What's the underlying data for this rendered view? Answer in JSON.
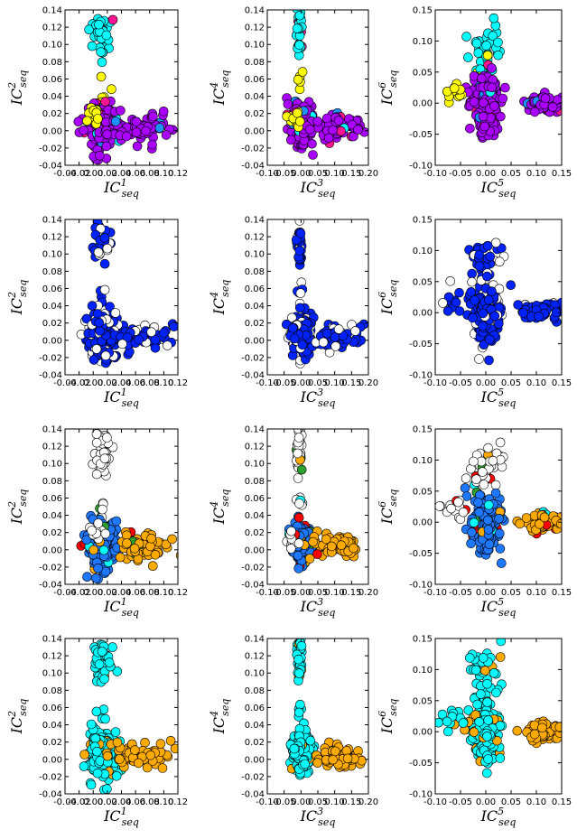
{
  "figure": {
    "rows": 4,
    "cols": 3,
    "background": "#ffffff",
    "point_edge_color": "#000000"
  },
  "chart_data": [
    {
      "type": "scatter",
      "row": 1,
      "col": 1,
      "x_ic": "1",
      "y_ic": "2",
      "xlabel": "IC^1_seq",
      "ylabel": "IC^2_seq",
      "coloring": "clusters",
      "xlim": [
        -0.04,
        0.12
      ],
      "ylim": [
        -0.04,
        0.14
      ],
      "xticks": [
        "-0.04",
        "-0.02",
        "0.00",
        "0.02",
        "0.04",
        "0.06",
        "0.08",
        "0.10",
        "0.12"
      ],
      "yticks": [
        "-0.04",
        "-0.02",
        "0.00",
        "0.02",
        "0.04",
        "0.06",
        "0.08",
        "0.10",
        "0.12",
        "0.14"
      ]
    },
    {
      "type": "scatter",
      "row": 1,
      "col": 2,
      "x_ic": "3",
      "y_ic": "4",
      "xlabel": "IC^3_seq",
      "ylabel": "IC^4_seq",
      "coloring": "clusters",
      "xlim": [
        -0.1,
        0.2
      ],
      "ylim": [
        -0.04,
        0.14
      ],
      "xticks": [
        "-0.10",
        "-0.05",
        "0.00",
        "0.05",
        "0.10",
        "0.15",
        "0.20"
      ],
      "yticks": [
        "-0.04",
        "-0.02",
        "0.00",
        "0.02",
        "0.04",
        "0.06",
        "0.08",
        "0.10",
        "0.12",
        "0.14"
      ]
    },
    {
      "type": "scatter",
      "row": 1,
      "col": 3,
      "x_ic": "5",
      "y_ic": "6",
      "xlabel": "IC^5_seq",
      "ylabel": "IC^6_seq",
      "coloring": "clusters",
      "xlim": [
        -0.1,
        0.15
      ],
      "ylim": [
        -0.1,
        0.15
      ],
      "xticks": [
        "-0.10",
        "-0.05",
        "0.00",
        "0.05",
        "0.10",
        "0.15"
      ],
      "yticks": [
        "-0.10",
        "-0.05",
        "0.00",
        "0.05",
        "0.10",
        "0.15"
      ]
    },
    {
      "type": "scatter",
      "row": 2,
      "col": 1,
      "x_ic": "1",
      "y_ic": "2",
      "xlabel": "IC^1_seq",
      "ylabel": "IC^2_seq",
      "coloring": "blue",
      "xlim": [
        -0.04,
        0.12
      ],
      "ylim": [
        -0.04,
        0.14
      ],
      "xticks": [
        "-0.04",
        "-0.02",
        "0.00",
        "0.02",
        "0.04",
        "0.06",
        "0.08",
        "0.10",
        "0.12"
      ],
      "yticks": [
        "-0.04",
        "-0.02",
        "0.00",
        "0.02",
        "0.04",
        "0.06",
        "0.08",
        "0.10",
        "0.12",
        "0.14"
      ]
    },
    {
      "type": "scatter",
      "row": 2,
      "col": 2,
      "x_ic": "3",
      "y_ic": "4",
      "xlabel": "IC^3_seq",
      "ylabel": "IC^4_seq",
      "coloring": "blue",
      "xlim": [
        -0.1,
        0.2
      ],
      "ylim": [
        -0.04,
        0.14
      ],
      "xticks": [
        "-0.10",
        "-0.05",
        "0.00",
        "0.05",
        "0.10",
        "0.15",
        "0.20"
      ],
      "yticks": [
        "-0.04",
        "-0.02",
        "0.00",
        "0.02",
        "0.04",
        "0.06",
        "0.08",
        "0.10",
        "0.12",
        "0.14"
      ]
    },
    {
      "type": "scatter",
      "row": 2,
      "col": 3,
      "x_ic": "5",
      "y_ic": "6",
      "xlabel": "IC^5_seq",
      "ylabel": "IC^6_seq",
      "coloring": "blue",
      "xlim": [
        -0.1,
        0.15
      ],
      "ylim": [
        -0.1,
        0.15
      ],
      "xticks": [
        "-0.10",
        "-0.05",
        "0.00",
        "0.05",
        "0.10",
        "0.15"
      ],
      "yticks": [
        "-0.10",
        "-0.05",
        "0.00",
        "0.05",
        "0.10",
        "0.15"
      ]
    },
    {
      "type": "scatter",
      "row": 3,
      "col": 1,
      "x_ic": "1",
      "y_ic": "2",
      "xlabel": "IC^1_seq",
      "ylabel": "IC^2_seq",
      "coloring": "mixed",
      "xlim": [
        -0.04,
        0.12
      ],
      "ylim": [
        -0.04,
        0.14
      ],
      "xticks": [
        "-0.04",
        "-0.02",
        "0.00",
        "0.02",
        "0.04",
        "0.06",
        "0.08",
        "0.10",
        "0.12"
      ],
      "yticks": [
        "-0.04",
        "-0.02",
        "0.00",
        "0.02",
        "0.04",
        "0.06",
        "0.08",
        "0.10",
        "0.12",
        "0.14"
      ]
    },
    {
      "type": "scatter",
      "row": 3,
      "col": 2,
      "x_ic": "3",
      "y_ic": "4",
      "xlabel": "IC^3_seq",
      "ylabel": "IC^4_seq",
      "coloring": "mixed",
      "xlim": [
        -0.1,
        0.2
      ],
      "ylim": [
        -0.04,
        0.14
      ],
      "xticks": [
        "-0.10",
        "-0.05",
        "0.00",
        "0.05",
        "0.10",
        "0.15",
        "0.20"
      ],
      "yticks": [
        "-0.04",
        "-0.02",
        "0.00",
        "0.02",
        "0.04",
        "0.06",
        "0.08",
        "0.10",
        "0.12",
        "0.14"
      ]
    },
    {
      "type": "scatter",
      "row": 3,
      "col": 3,
      "x_ic": "5",
      "y_ic": "6",
      "xlabel": "IC^5_seq",
      "ylabel": "IC^6_seq",
      "coloring": "mixed",
      "xlim": [
        -0.1,
        0.15
      ],
      "ylim": [
        -0.1,
        0.15
      ],
      "xticks": [
        "-0.10",
        "-0.05",
        "0.00",
        "0.05",
        "0.10",
        "0.15"
      ],
      "yticks": [
        "-0.10",
        "-0.05",
        "0.00",
        "0.05",
        "0.10",
        "0.15"
      ]
    },
    {
      "type": "scatter",
      "row": 4,
      "col": 1,
      "x_ic": "1",
      "y_ic": "2",
      "xlabel": "IC^1_seq",
      "ylabel": "IC^2_seq",
      "coloring": "two",
      "xlim": [
        -0.04,
        0.12
      ],
      "ylim": [
        -0.04,
        0.14
      ],
      "xticks": [
        "-0.04",
        "-0.02",
        "0.00",
        "0.02",
        "0.04",
        "0.06",
        "0.08",
        "0.10",
        "0.12"
      ],
      "yticks": [
        "-0.04",
        "-0.02",
        "0.00",
        "0.02",
        "0.04",
        "0.06",
        "0.08",
        "0.10",
        "0.12",
        "0.14"
      ]
    },
    {
      "type": "scatter",
      "row": 4,
      "col": 2,
      "x_ic": "3",
      "y_ic": "4",
      "xlabel": "IC^3_seq",
      "ylabel": "IC^4_seq",
      "coloring": "two",
      "xlim": [
        -0.1,
        0.2
      ],
      "ylim": [
        -0.04,
        0.14
      ],
      "xticks": [
        "-0.10",
        "-0.05",
        "0.00",
        "0.05",
        "0.10",
        "0.15",
        "0.20"
      ],
      "yticks": [
        "-0.04",
        "-0.02",
        "0.00",
        "0.02",
        "0.04",
        "0.06",
        "0.08",
        "0.10",
        "0.12",
        "0.14"
      ]
    },
    {
      "type": "scatter",
      "row": 4,
      "col": 3,
      "x_ic": "5",
      "y_ic": "6",
      "xlabel": "IC^5_seq",
      "ylabel": "IC^6_seq",
      "coloring": "two",
      "xlim": [
        -0.1,
        0.15
      ],
      "ylim": [
        -0.1,
        0.15
      ],
      "xticks": [
        "-0.10",
        "-0.05",
        "0.00",
        "0.05",
        "0.10",
        "0.15"
      ],
      "yticks": [
        "-0.10",
        "-0.05",
        "0.00",
        "0.05",
        "0.10",
        "0.15"
      ]
    }
  ],
  "point_groups": {
    "hi_cluster": {
      "ic1": [
        0.013,
        0.007
      ],
      "ic2": [
        0.113,
        0.014
      ],
      "ic3": [
        -0.005,
        0.004
      ],
      "ic4": [
        0.113,
        0.014
      ],
      "ic5": [
        0.0,
        0.015
      ],
      "ic6": [
        0.09,
        0.02
      ]
    },
    "mid_cluster": {
      "ic1": [
        0.012,
        0.005
      ],
      "ic2": [
        0.045,
        0.012
      ],
      "ic3": [
        -0.003,
        0.004
      ],
      "ic4": [
        0.055,
        0.006
      ],
      "ic5": [
        -0.005,
        0.01
      ],
      "ic6": [
        0.055,
        0.02
      ]
    },
    "core_cluster": {
      "ic1": [
        0.012,
        0.01
      ],
      "ic2": [
        0.005,
        0.013
      ],
      "ic3": [
        0.002,
        0.014
      ],
      "ic4": [
        0.008,
        0.012
      ],
      "ic5": [
        0.0,
        0.013
      ],
      "ic6": [
        0.0,
        0.022
      ]
    },
    "tail_cluster": {
      "ic1": [
        0.07,
        0.022
      ],
      "ic2": [
        0.004,
        0.008
      ],
      "ic3": [
        0.11,
        0.035
      ],
      "ic4": [
        0.004,
        0.007
      ],
      "ic5": [
        0.115,
        0.02
      ],
      "ic6": [
        0.0,
        0.007
      ]
    },
    "left_cluster": {
      "ic1": [
        0.005,
        0.006
      ],
      "ic2": [
        0.02,
        0.006
      ],
      "ic3": [
        -0.02,
        0.01
      ],
      "ic4": [
        0.012,
        0.006
      ],
      "ic5": [
        -0.065,
        0.012
      ],
      "ic6": [
        0.018,
        0.01
      ]
    },
    "coloring": {
      "clusters": {
        "hi_cluster": "#00ffff",
        "mid_cluster": "#ffff00",
        "core_cluster": "#aa00ff",
        "tail_cluster": "#aa00ff",
        "left_cluster": "#ffff00",
        "accents": [
          "#ff1493",
          "#1e90ff",
          "#00ffff"
        ]
      },
      "blue": {
        "all": "#0022ff",
        "open": "#ffffff",
        "accents": [
          "#00ffff"
        ]
      },
      "mixed": {
        "hi_cluster": "#ffffff",
        "mid_cluster": "#ffffff",
        "core_cluster": "#1e78ff",
        "tail_cluster": "#ffaa00",
        "left_cluster": "#ffffff",
        "accents": [
          "#ff0000",
          "#00ffff",
          "#2ca02c",
          "#ffaa00"
        ]
      },
      "two": {
        "hi_cluster": "#00ffff",
        "mid_cluster": "#00ffff",
        "core_cluster": "#00ffff",
        "tail_cluster": "#ffaa00",
        "left_cluster": "#00ffff",
        "accents": [
          "#ffaa00"
        ]
      }
    }
  }
}
